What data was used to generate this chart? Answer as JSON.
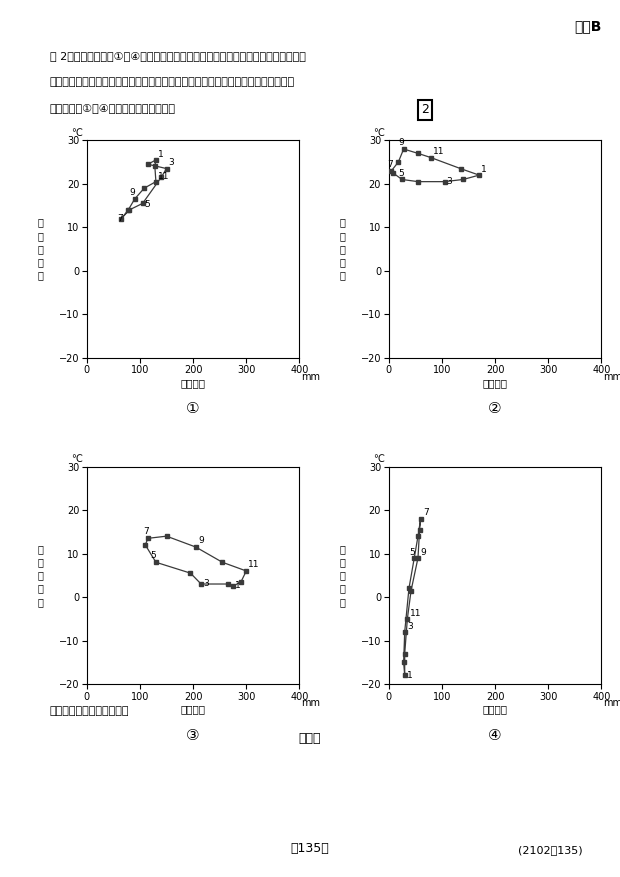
{
  "title_top_right": "地理B",
  "q_line1": "問 2　次の図２中の①～④は，図１中のア～エのいずれかの地点における月平均気",
  "q_line2": "　　温と月降水量をハイサーグラフで示したものである。ウに該当するものを，図",
  "q_line3": "　　２中の①～④のうちから一つ選べ。",
  "answer_box": "2",
  "caption": "気象庁の資料により作成。",
  "fig_label": "図　２",
  "page_bottom": "－135－",
  "page_code": "(2102－135)",
  "graph1": {
    "label": "①",
    "precip": [
      130,
      115,
      150,
      140,
      105,
      80,
      65,
      78,
      90,
      108,
      130,
      128
    ],
    "temp": [
      25.5,
      24.5,
      23.5,
      21.5,
      15.5,
      14.0,
      12.0,
      14.0,
      16.5,
      19.0,
      20.5,
      24.0
    ],
    "show_months": [
      1,
      3,
      5,
      7,
      9,
      11
    ]
  },
  "graph2": {
    "label": "②",
    "precip": [
      170,
      140,
      105,
      55,
      25,
      8,
      5,
      18,
      28,
      55,
      80,
      135
    ],
    "temp": [
      22.0,
      21.0,
      20.5,
      20.5,
      21.0,
      22.5,
      23.0,
      25.0,
      28.0,
      27.0,
      26.0,
      23.5
    ],
    "show_months": [
      1,
      3,
      5,
      7,
      9,
      11
    ]
  },
  "graph3": {
    "label": "③",
    "precip": [
      275,
      265,
      215,
      195,
      130,
      110,
      115,
      150,
      205,
      255,
      300,
      290
    ],
    "temp": [
      2.5,
      3.0,
      3.0,
      5.5,
      8.0,
      12.0,
      13.5,
      14.0,
      11.5,
      8.0,
      6.0,
      3.5
    ],
    "show_months": [
      1,
      3,
      5,
      7,
      9,
      11
    ]
  },
  "graph4": {
    "label": "④",
    "precip": [
      30,
      28,
      30,
      38,
      48,
      55,
      60,
      58,
      55,
      42,
      35,
      30
    ],
    "temp": [
      -18.0,
      -15.0,
      -8.0,
      2.0,
      9.0,
      14.0,
      18.0,
      15.5,
      9.0,
      1.5,
      -5.0,
      -13.0
    ],
    "show_months": [
      1,
      3,
      5,
      7,
      9,
      11
    ]
  },
  "xlim": [
    0,
    400
  ],
  "ylim": [
    -20,
    30
  ],
  "xticks": [
    0,
    100,
    200,
    300,
    400
  ],
  "yticks": [
    -20,
    -10,
    0,
    10,
    20,
    30
  ],
  "xlabel": "月降水量",
  "ylabel_chars": [
    "月",
    "平",
    "均",
    "気",
    "温"
  ],
  "xunit": "mm",
  "yunit": "℃"
}
